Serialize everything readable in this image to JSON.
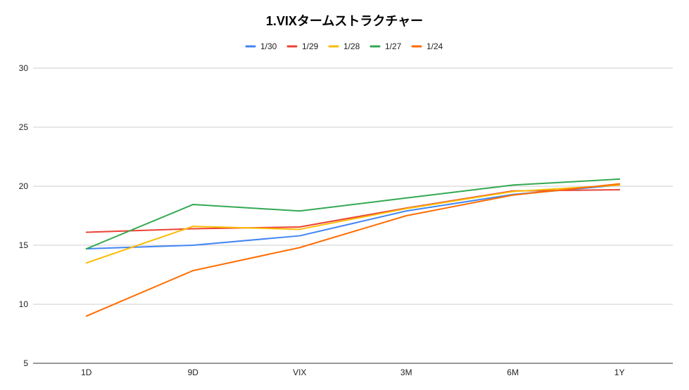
{
  "chart_data": {
    "type": "line",
    "title": "1.VIXタームストラクチャー",
    "xlabel": "",
    "ylabel": "",
    "categories": [
      "1D",
      "9D",
      "VIX",
      "3M",
      "6M",
      "1Y"
    ],
    "ylim": [
      5,
      30
    ],
    "yticks": [
      5,
      10,
      15,
      20,
      25,
      30
    ],
    "grid": true,
    "legend_position": "top",
    "series": [
      {
        "name": "1/30",
        "color": "#4285f4",
        "values": [
          14.7,
          15.0,
          15.8,
          17.9,
          19.3,
          20.1
        ]
      },
      {
        "name": "1/29",
        "color": "#ea4335",
        "values": [
          16.1,
          16.4,
          16.55,
          18.15,
          19.6,
          19.7
        ]
      },
      {
        "name": "1/28",
        "color": "#fbbc04",
        "values": [
          13.5,
          16.6,
          16.35,
          18.1,
          19.55,
          20.1
        ]
      },
      {
        "name": "1/27",
        "color": "#34a853",
        "values": [
          14.7,
          18.45,
          17.9,
          19.0,
          20.1,
          20.6
        ]
      },
      {
        "name": "1/24",
        "color": "#ff6d01",
        "values": [
          9.0,
          12.85,
          14.8,
          17.5,
          19.25,
          20.2
        ]
      }
    ]
  }
}
